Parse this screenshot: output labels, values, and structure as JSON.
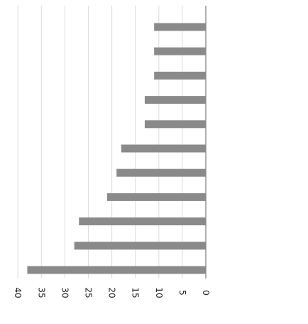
{
  "chart_data": {
    "type": "bar",
    "orientation": "horizontal",
    "rotated": "upside-down scan",
    "categories": [
      "",
      "",
      "",
      "",
      "",
      "",
      "",
      "",
      "",
      "",
      ""
    ],
    "values": [
      38,
      28,
      27,
      21,
      19,
      18,
      13,
      13,
      11,
      11,
      11
    ],
    "xlim": [
      0,
      40
    ],
    "xticks": [
      0,
      5,
      10,
      15,
      20,
      25,
      30,
      35,
      40
    ],
    "xtick_labels": [
      "0",
      "5",
      "10",
      "15",
      "20",
      "25",
      "30",
      "35",
      "40"
    ],
    "grid": true,
    "bar_color": "#8a8a8a",
    "grid_color": "#dcdcdc",
    "title": "",
    "xlabel": "",
    "ylabel": ""
  }
}
